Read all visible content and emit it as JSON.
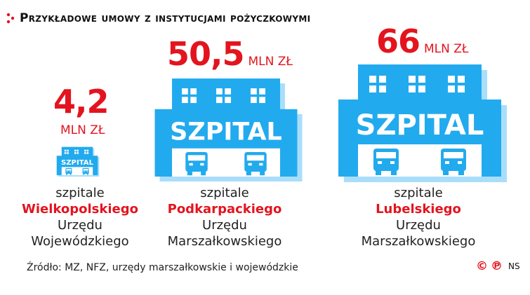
{
  "title": "Przykładowe umowy z instytucjami pożyczkowymi",
  "colors": {
    "accent": "#e3141e",
    "building": "#22aaee",
    "building_shadow": "#a9defb"
  },
  "icon": {
    "building_label": "SZPITAL",
    "vehicle": "ambulance-icon"
  },
  "chart_data": {
    "type": "bar",
    "title": "Przykładowe umowy z instytucjami pożyczkowymi",
    "unit": "mln zł",
    "categories": [
      "szpitale Wielkopolskiego Urzędu Wojewódzkiego",
      "szpitale Podkarpackiego Urzędu Marszałkowskiego",
      "szpitale Lubelskiego Urzędu Marszałkowskiego"
    ],
    "values": [
      4.2,
      50.5,
      66
    ],
    "value_labels": [
      "4,2",
      "50,5",
      "66"
    ]
  },
  "items": [
    {
      "value_label": "4,2",
      "unit": "MLN ZŁ",
      "prefix": "szpitale",
      "region": "Wielkopolskiego",
      "office_1": "Urzędu",
      "office_2": "Wojewódzkiego"
    },
    {
      "value_label": "50,5",
      "unit": "MLN ZŁ",
      "prefix": "szpitale",
      "region": "Podkarpackiego",
      "office_1": "Urzędu",
      "office_2": "Marszałkowskiego"
    },
    {
      "value_label": "66",
      "unit": "MLN ZŁ",
      "prefix": "szpitale",
      "region": "Lubelskiego",
      "office_1": "Urzędu",
      "office_2": "Marszałkowskiego"
    }
  ],
  "source": "Źródło: MZ, NFZ, urzędy marszałkowskie i wojewódzkie",
  "credit": {
    "symbol_1": "©",
    "symbol_2": "℗",
    "author": "NS"
  }
}
